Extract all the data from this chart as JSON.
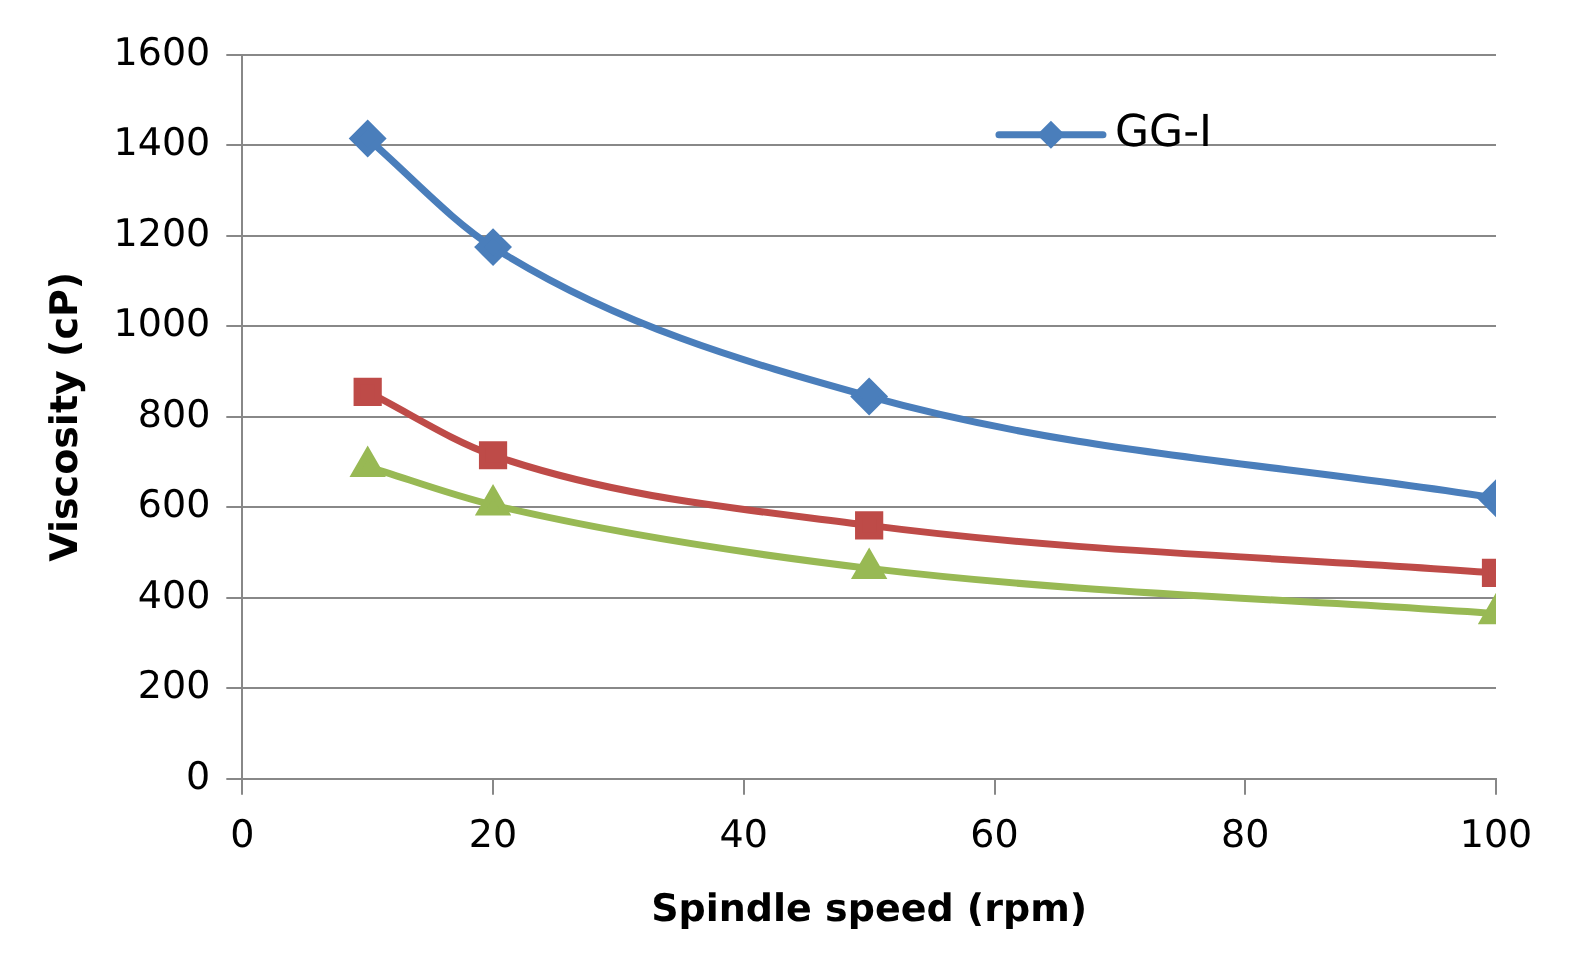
{
  "chart_data": {
    "type": "line",
    "xlabel": "Spindle speed (rpm)",
    "ylabel": "Viscosity (cP)",
    "x": [
      10,
      20,
      50,
      100
    ],
    "series": [
      {
        "name": "GG-I",
        "color": "#4a7ebb",
        "marker": "diamond",
        "values": [
          1415,
          1175,
          845,
          620
        ]
      },
      {
        "color": "#be4b48",
        "marker": "square",
        "values": [
          855,
          715,
          560,
          455
        ]
      },
      {
        "color": "#98b954",
        "marker": "triangle",
        "values": [
          690,
          605,
          465,
          365
        ]
      }
    ],
    "xlim": [
      0,
      100
    ],
    "xticks": [
      0,
      20,
      40,
      60,
      80,
      100
    ],
    "ylim": [
      0,
      1600
    ],
    "yticks": [
      0,
      200,
      400,
      600,
      800,
      1000,
      1200,
      1400,
      1600
    ],
    "grid": "y",
    "legend": "top right"
  }
}
